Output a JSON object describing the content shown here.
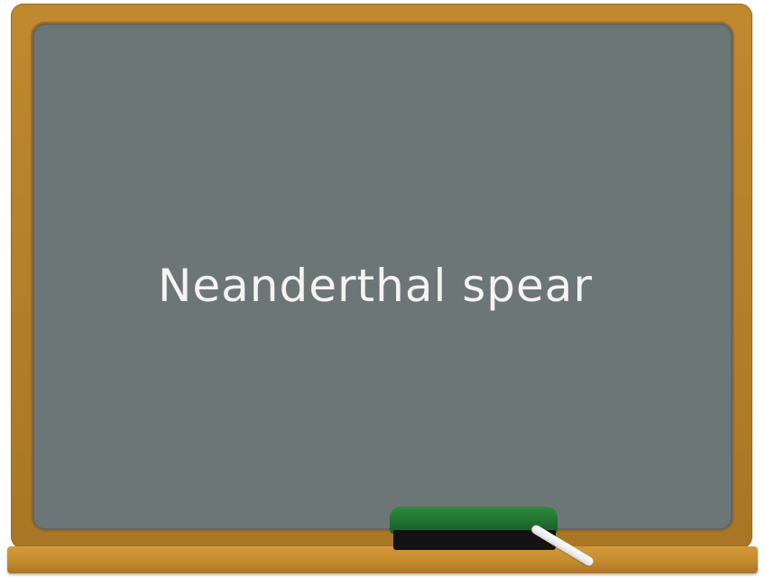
{
  "board": {
    "text": "Neanderthal spear"
  },
  "colors": {
    "frame": "#b5802a",
    "board": "#6d7676",
    "chalk_text": "#f4f4f2",
    "eraser_top": "#1f6f2f",
    "eraser_base": "#121212",
    "chalk_stick": "#ffffff"
  },
  "icons": {
    "eraser": "chalkboard-eraser-icon",
    "chalk": "chalk-stick-icon"
  }
}
